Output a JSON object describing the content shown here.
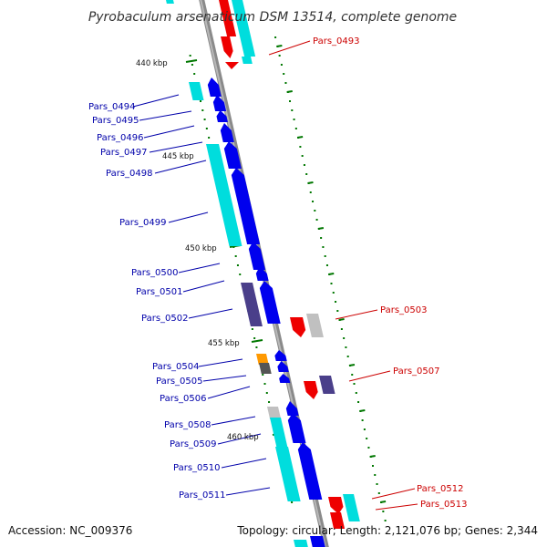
{
  "header": {
    "title": "Pyrobaculum arsenaticum DSM 13514, complete genome"
  },
  "footer": {
    "accession": "Accession: NC_009376",
    "topology": "Topology: circular; Length: 2,121,076 bp; Genes: 2,344"
  },
  "colors": {
    "forward_gene": "#0000ee",
    "reverse_gene": "#ee0000",
    "rna_cyan": "#00dddd",
    "other_gray": "#c0c0c0",
    "dark_slate": "#4a3f8a",
    "orange": "#ff9900",
    "tick_green": "#007700",
    "backbone": "#888888",
    "label_blue": "#0000aa",
    "label_red": "#cc0000"
  },
  "scale_marks": [
    {
      "label": "440 kbp"
    },
    {
      "label": "445 kbp"
    },
    {
      "label": "450 kbp"
    },
    {
      "label": "455 kbp"
    },
    {
      "label": "460 kbp"
    }
  ],
  "genes_left": [
    {
      "label": "Pars_0494"
    },
    {
      "label": "Pars_0495"
    },
    {
      "label": "Pars_0496"
    },
    {
      "label": "Pars_0497"
    },
    {
      "label": "Pars_0498"
    },
    {
      "label": "Pars_0499"
    },
    {
      "label": "Pars_0500"
    },
    {
      "label": "Pars_0501"
    },
    {
      "label": "Pars_0502"
    },
    {
      "label": "Pars_0504"
    },
    {
      "label": "Pars_0505"
    },
    {
      "label": "Pars_0506"
    },
    {
      "label": "Pars_0508"
    },
    {
      "label": "Pars_0509"
    },
    {
      "label": "Pars_0510"
    },
    {
      "label": "Pars_0511"
    }
  ],
  "genes_right": [
    {
      "label": "Pars_0493"
    },
    {
      "label": "Pars_0503"
    },
    {
      "label": "Pars_0507"
    },
    {
      "label": "Pars_0512"
    },
    {
      "label": "Pars_0513"
    }
  ]
}
